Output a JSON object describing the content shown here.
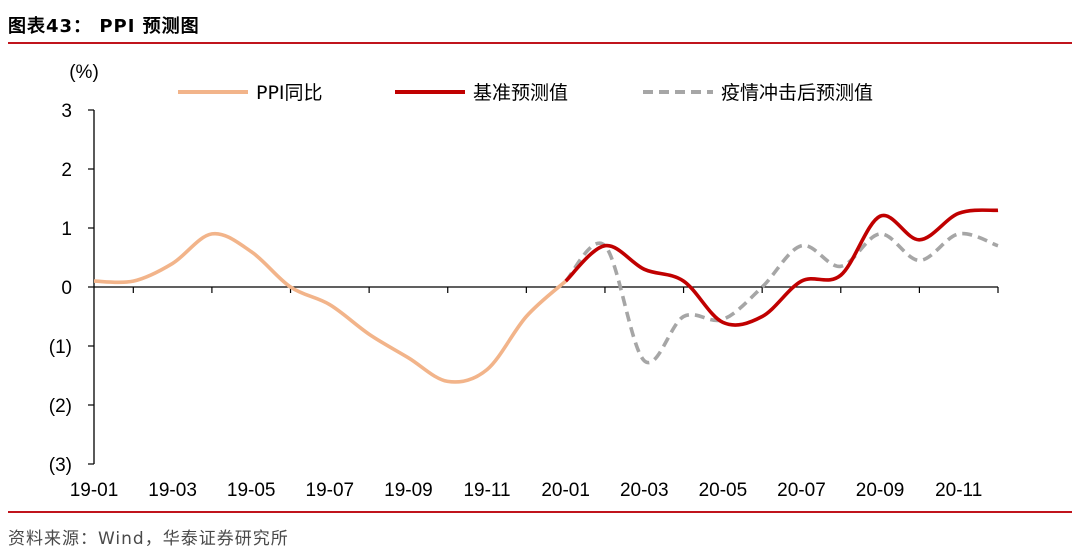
{
  "header": {
    "title": "图表43： PPI 预测图"
  },
  "footer": {
    "source": "资料来源：Wind，华泰证券研究所"
  },
  "chart_data": {
    "type": "line",
    "ylabel": "(%)",
    "ylim": [
      -3,
      3
    ],
    "yticks": [
      3,
      2,
      1,
      0,
      -1,
      -2,
      -3
    ],
    "ytick_labels": [
      "3",
      "2",
      "1",
      "0",
      "(1)",
      "(2)",
      "(3)"
    ],
    "xticks": [
      "19-01",
      "19-03",
      "19-05",
      "19-07",
      "19-09",
      "19-11",
      "20-01",
      "20-03",
      "20-05",
      "20-07",
      "20-09",
      "20-11"
    ],
    "legend_position": "top",
    "grid": false,
    "series": [
      {
        "name": "PPI同比",
        "color": "#f2b48a",
        "style": "solid",
        "points": [
          {
            "x": "19-01",
            "y": 0.1
          },
          {
            "x": "19-02",
            "y": 0.1
          },
          {
            "x": "19-03",
            "y": 0.4
          },
          {
            "x": "19-04",
            "y": 0.9
          },
          {
            "x": "19-05",
            "y": 0.6
          },
          {
            "x": "19-06",
            "y": 0.0
          },
          {
            "x": "19-07",
            "y": -0.3
          },
          {
            "x": "19-08",
            "y": -0.8
          },
          {
            "x": "19-09",
            "y": -1.2
          },
          {
            "x": "19-10",
            "y": -1.6
          },
          {
            "x": "19-11",
            "y": -1.4
          },
          {
            "x": "19-12",
            "y": -0.5
          },
          {
            "x": "20-01",
            "y": 0.1
          }
        ]
      },
      {
        "name": "基准预测值",
        "color": "#c00000",
        "style": "solid",
        "points": [
          {
            "x": "20-01",
            "y": 0.1
          },
          {
            "x": "20-02",
            "y": 0.7
          },
          {
            "x": "20-03",
            "y": 0.3
          },
          {
            "x": "20-04",
            "y": 0.1
          },
          {
            "x": "20-05",
            "y": -0.6
          },
          {
            "x": "20-06",
            "y": -0.5
          },
          {
            "x": "20-07",
            "y": 0.1
          },
          {
            "x": "20-08",
            "y": 0.2
          },
          {
            "x": "20-09",
            "y": 1.2
          },
          {
            "x": "20-10",
            "y": 0.8
          },
          {
            "x": "20-11",
            "y": 1.25
          },
          {
            "x": "20-12",
            "y": 1.3
          }
        ]
      },
      {
        "name": "疫情冲击后预测值",
        "color": "#a6a6a6",
        "style": "dashed",
        "points": [
          {
            "x": "20-01",
            "y": 0.1
          },
          {
            "x": "20-02",
            "y": 0.7
          },
          {
            "x": "20-03",
            "y": -1.25
          },
          {
            "x": "20-04",
            "y": -0.5
          },
          {
            "x": "20-05",
            "y": -0.55
          },
          {
            "x": "20-06",
            "y": 0.0
          },
          {
            "x": "20-07",
            "y": 0.7
          },
          {
            "x": "20-08",
            "y": 0.35
          },
          {
            "x": "20-09",
            "y": 0.9
          },
          {
            "x": "20-10",
            "y": 0.45
          },
          {
            "x": "20-11",
            "y": 0.9
          },
          {
            "x": "20-12",
            "y": 0.7
          }
        ]
      }
    ]
  }
}
